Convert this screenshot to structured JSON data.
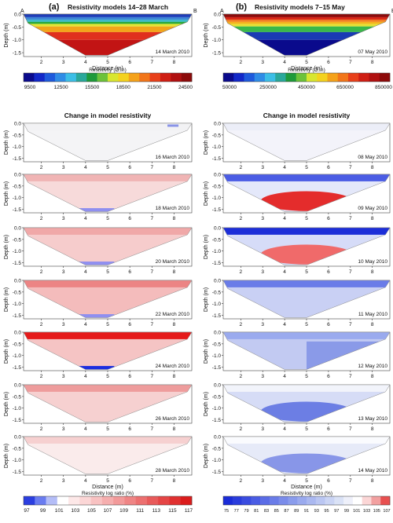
{
  "panels": {
    "a": {
      "letter": "(a)",
      "title": "Resistivity models 14–28 March",
      "end_left": "A",
      "end_right": "B",
      "baseline_date": "14 March 2010",
      "baseline_colors": [
        "#1f3db8",
        "#3e86d6",
        "#34b8c8",
        "#2aaa3b",
        "#e2e633",
        "#f2a51a",
        "#e0301e",
        "#c21414"
      ],
      "resistivity_scale": {
        "label": "Resistivity (Ω.m)",
        "ticks": [
          "9500",
          "12500",
          "15500",
          "18500",
          "21500",
          "24500"
        ],
        "colors": [
          "#0a0a8c",
          "#1228c8",
          "#1e5adc",
          "#2f8ce6",
          "#3cbee6",
          "#2aa89a",
          "#1e9a3a",
          "#6cc23a",
          "#d8e630",
          "#f4d21e",
          "#f5a21a",
          "#f2761a",
          "#e8401a",
          "#cf1e14",
          "#b01010",
          "#8c0a0a"
        ]
      },
      "change_title": "Change in model resistivity",
      "change_dates": [
        "16 March 2010",
        "18 March 2010",
        "20 March 2010",
        "22 March 2010",
        "24 March 2010",
        "26 March 2010",
        "28 March 2010"
      ],
      "ratio_scale": {
        "label": "Resistivity log ratio (%)",
        "ticks": [
          "97",
          "99",
          "101",
          "103",
          "105",
          "107",
          "109",
          "111",
          "113",
          "115",
          "117"
        ],
        "colors": [
          "#2b3ee0",
          "#6a7cf0",
          "#b4bdf7",
          "#ffffff",
          "#fde8e8",
          "#fbd6d6",
          "#f8c2c2",
          "#f5aeae",
          "#f29a9a",
          "#ef8585",
          "#ec7070",
          "#e85a5a",
          "#e54545",
          "#e03030",
          "#db1c1c"
        ]
      }
    },
    "b": {
      "letter": "(b)",
      "title": "Resistivity models 7–15 May",
      "end_left": "A",
      "end_right": "B",
      "baseline_date": "07 May 2010",
      "baseline_colors": [
        "#8c0a0a",
        "#d92818",
        "#f27a1a",
        "#f5b21e",
        "#e6e033",
        "#3ab84a",
        "#1a3ab4",
        "#0a0a8c"
      ],
      "resistivity_scale": {
        "label": "Resistivity (Ω.m)",
        "ticks": [
          "50000",
          "250000",
          "450000",
          "650000",
          "850000"
        ],
        "colors": [
          "#0a0a8c",
          "#1228c8",
          "#1e5adc",
          "#2f8ce6",
          "#3cbee6",
          "#2aa89a",
          "#1e9a3a",
          "#6cc23a",
          "#d8e630",
          "#f4d21e",
          "#f5a21a",
          "#f2761a",
          "#e8401a",
          "#cf1e14",
          "#b01010",
          "#8c0a0a"
        ]
      },
      "change_title": "Change in model resistivity",
      "change_dates": [
        "08 May 2010",
        "09 May 2010",
        "10 May 2010",
        "11 May 2010",
        "12 May 2010",
        "13 May 2010",
        "14 May 2010"
      ],
      "ratio_scale": {
        "label": "Resistivity log ratio (%)",
        "ticks": [
          "75",
          "77",
          "79",
          "81",
          "83",
          "85",
          "87",
          "89",
          "91",
          "93",
          "95",
          "97",
          "99",
          "101",
          "103",
          "105",
          "107"
        ],
        "colors": [
          "#1a2cd8",
          "#2a3cdc",
          "#3a4ce0",
          "#4a5ce4",
          "#5a6ce6",
          "#6a7ce8",
          "#7a8cea",
          "#8a9cec",
          "#9aaaee",
          "#aab8f0",
          "#bac6f2",
          "#cad4f4",
          "#dae2f6",
          "#eef0fa",
          "#ffffff",
          "#fbd6d6",
          "#f2a0a0",
          "#e85050"
        ]
      }
    }
  },
  "axes": {
    "depth_label": "Depth (m)",
    "distance_label": "Distance (m)",
    "depth_ticks": [
      "0.0",
      "-0.5",
      "-1.0",
      "-1.5"
    ],
    "distance_ticks": [
      "2",
      "3",
      "4",
      "5",
      "6",
      "7",
      "8"
    ]
  },
  "change_styles": {
    "a": [
      {
        "base": "#f4f4f6",
        "top": "#f2f2f4",
        "blob": "#8a94e8",
        "blob_pos": "right-top"
      },
      {
        "base": "#f7dada",
        "top": "#f0b4b4",
        "blob": "#8f8ff0",
        "blob_pos": "bottom"
      },
      {
        "base": "#f6cccc",
        "top": "#f0a8a8",
        "blob": "#8f8ff0",
        "blob_pos": "bottom"
      },
      {
        "base": "#f4bcbc",
        "top": "#ec8484",
        "blob": "#8f8ff0",
        "blob_pos": "bottom"
      },
      {
        "base": "#f5c4c4",
        "top": "#e51a1a",
        "blob": "#1c2ee0",
        "blob_pos": "bottom"
      },
      {
        "base": "#f6d0d0",
        "top": "#ee9c9c",
        "blob": "",
        "blob_pos": ""
      },
      {
        "base": "#faebeb",
        "top": "#f6d0d0",
        "blob": "",
        "blob_pos": ""
      }
    ],
    "b": [
      {
        "base": "#f3f3fa",
        "top": "#eceef8",
        "blob": "",
        "blob_pos": ""
      },
      {
        "base": "#e4e8fa",
        "top": "#4a5ce4",
        "blob": "#e42c2c",
        "blob_pos": "center"
      },
      {
        "base": "#d6dcf8",
        "top": "#1c2ed8",
        "blob": "#f06a6a",
        "blob_pos": "center"
      },
      {
        "base": "#c9d0f4",
        "top": "#6a7ce8",
        "blob": "",
        "blob_pos": ""
      },
      {
        "base": "#c2caf2",
        "top": "#9aaaee",
        "blob": "#8a9ae8",
        "blob_pos": "right"
      },
      {
        "base": "#d6dcf6",
        "top": "#f2f4fb",
        "blob": "#6c7ee4",
        "blob_pos": "center"
      },
      {
        "base": "#e6eaf8",
        "top": "#fafbfe",
        "blob": "#8896e8",
        "blob_pos": "center"
      }
    ]
  }
}
